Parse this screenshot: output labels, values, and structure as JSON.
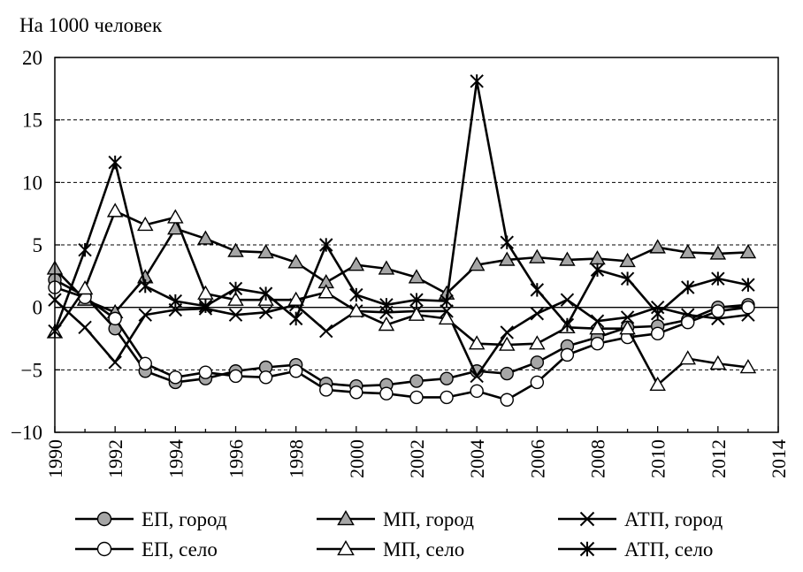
{
  "chart_data": {
    "type": "line",
    "title": "",
    "ylabel": "На 1000 человек",
    "xlabel": "",
    "xlim": [
      1990,
      2014
    ],
    "ylim": [
      -10,
      20
    ],
    "x_ticks": [
      "1990",
      "1992",
      "1994",
      "1996",
      "1998",
      "2000",
      "2002",
      "2004",
      "2006",
      "2008",
      "2010",
      "2012",
      "2014"
    ],
    "y_ticks": [
      "20",
      "15",
      "10",
      "5",
      "0",
      "−5",
      "−10"
    ],
    "grid": "dashed horizontal at 15, 10, 5, -5; solid line at 0",
    "legend_position": "bottom",
    "x": [
      1990,
      1991,
      1992,
      1993,
      1994,
      1995,
      1996,
      1997,
      1998,
      1999,
      2000,
      2001,
      2002,
      2003,
      2004,
      2005,
      2006,
      2007,
      2008,
      2009,
      2010,
      2011,
      2012,
      2013
    ],
    "series": [
      {
        "name": "ЕП, город",
        "marker": "circle-gray",
        "values": [
          2.2,
          0.9,
          -1.7,
          -5.1,
          -6.0,
          -5.7,
          -5.1,
          -4.8,
          -4.6,
          -6.1,
          -6.3,
          -6.2,
          -5.9,
          -5.7,
          -5.1,
          -5.3,
          -4.4,
          -3.1,
          -2.4,
          -1.6,
          -1.5,
          -1.0,
          0.0,
          0.2
        ]
      },
      {
        "name": "МП, город",
        "marker": "triangle-gray",
        "values": [
          3.1,
          0.6,
          -0.4,
          2.4,
          6.3,
          5.5,
          4.5,
          4.4,
          3.6,
          2.0,
          3.4,
          3.1,
          2.4,
          1.1,
          3.4,
          3.8,
          4.0,
          3.8,
          3.9,
          3.7,
          4.8,
          4.4,
          4.3,
          4.4
        ]
      },
      {
        "name": "АТП, город",
        "marker": "x",
        "values": [
          0.6,
          -1.6,
          -4.4,
          -0.6,
          -0.2,
          -0.1,
          -0.6,
          -0.4,
          0.2,
          -1.9,
          -0.3,
          -0.4,
          -0.3,
          -0.3,
          -5.5,
          -2.0,
          -0.5,
          0.6,
          -1.1,
          -0.8,
          0.0,
          -0.6,
          -0.9,
          -0.6
        ]
      },
      {
        "name": "ЕП, село",
        "marker": "circle-white",
        "values": [
          1.6,
          0.8,
          -0.9,
          -4.5,
          -5.6,
          -5.2,
          -5.5,
          -5.6,
          -5.1,
          -6.6,
          -6.8,
          -6.9,
          -7.2,
          -7.2,
          -6.7,
          -7.4,
          -6.0,
          -3.8,
          -2.9,
          -2.4,
          -2.1,
          -1.2,
          -0.3,
          0.0
        ]
      },
      {
        "name": "МП, село",
        "marker": "triangle-white",
        "values": [
          -2.0,
          1.5,
          7.7,
          6.6,
          7.2,
          1.1,
          0.6,
          0.6,
          0.6,
          1.2,
          -0.3,
          -1.4,
          -0.6,
          -0.9,
          -2.9,
          -3.0,
          -2.9,
          -1.6,
          -1.7,
          -1.7,
          -6.2,
          -4.1,
          -4.5,
          -4.8
        ]
      },
      {
        "name": "АТП, село",
        "marker": "asterisk",
        "values": [
          -1.9,
          4.6,
          11.6,
          1.7,
          0.5,
          0.1,
          1.5,
          1.1,
          -0.9,
          5.0,
          1.0,
          0.2,
          0.6,
          0.5,
          18.1,
          5.2,
          1.4,
          -1.4,
          3.0,
          2.3,
          -0.5,
          1.6,
          2.3,
          1.8
        ]
      }
    ]
  }
}
